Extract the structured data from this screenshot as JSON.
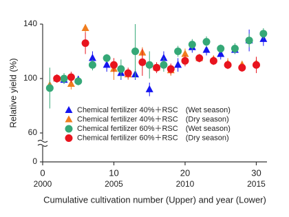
{
  "chart_data": {
    "type": "scatter",
    "x_label": "Cumulative cultivation number (Upper) and year (Lower)",
    "y_label": "Relative yield (%)",
    "xlim": [
      0,
      31.5
    ],
    "xticks": [
      0,
      10,
      20,
      30
    ],
    "xticks_lower": [
      "2000",
      "2005",
      "2010",
      "2015"
    ],
    "ylim": [
      0,
      140
    ],
    "yticks": [
      0,
      60,
      100,
      140
    ],
    "y_break": [
      0,
      60
    ],
    "series": [
      {
        "name": "Chemical fertilizer 40%＋RSC　(Wet season)",
        "color": "#1515f0",
        "marker": "triangle",
        "x": [
          2,
          3,
          5,
          7,
          9,
          11,
          13,
          15,
          17,
          19,
          21,
          23,
          25,
          27,
          29,
          31
        ],
        "values": [
          100,
          99,
          99,
          115,
          110,
          104,
          103,
          92,
          115,
          110,
          123,
          121,
          118,
          121,
          128,
          129
        ],
        "errors": [
          3,
          3,
          3,
          5,
          5,
          5,
          4,
          5,
          5,
          5,
          4,
          4,
          4,
          3,
          8,
          5
        ]
      },
      {
        "name": "Chemical fertilizer 40%＋RSC　(Dry season)",
        "color": "#f07d1e",
        "marker": "triangle",
        "x": [
          1,
          2,
          4,
          6,
          10,
          12,
          14,
          16,
          18,
          20,
          22,
          24,
          26,
          28,
          30
        ],
        "values": [
          95,
          100,
          96,
          137,
          107,
          103,
          119,
          108,
          106,
          118,
          115,
          114,
          111,
          110,
          111
        ],
        "errors": [
          4,
          3,
          4,
          3,
          8,
          4,
          4,
          3,
          4,
          4,
          3,
          3,
          4,
          3,
          4
        ]
      },
      {
        "name": "Chemical fertilizer 60%＋RSC　(Wet season)",
        "color": "#35a877",
        "marker": "circle",
        "x": [
          1,
          3,
          5,
          7,
          9,
          11,
          13,
          15,
          17,
          19,
          21,
          23,
          25,
          27,
          29,
          31
        ],
        "values": [
          93,
          100,
          98,
          110,
          115,
          107,
          120,
          110,
          110,
          120,
          125,
          127,
          122,
          122,
          128,
          133
        ],
        "errors": [
          15,
          4,
          3,
          4,
          3,
          7,
          20,
          10,
          5,
          4,
          4,
          4,
          3,
          4,
          5,
          4
        ]
      },
      {
        "name": "Chemical fertilizer 60%＋RSC　(Dry season)",
        "color": "#e8141e",
        "marker": "circle",
        "x": [
          2,
          4,
          6,
          10,
          12,
          14,
          16,
          18,
          20,
          22,
          24,
          26,
          28,
          30
        ],
        "values": [
          100,
          101,
          126,
          110,
          104,
          112,
          108,
          107,
          113,
          115,
          113,
          110,
          108,
          110
        ],
        "errors": [
          3,
          4,
          8,
          5,
          4,
          10,
          4,
          4,
          4,
          3,
          3,
          3,
          3,
          6
        ]
      }
    ]
  }
}
